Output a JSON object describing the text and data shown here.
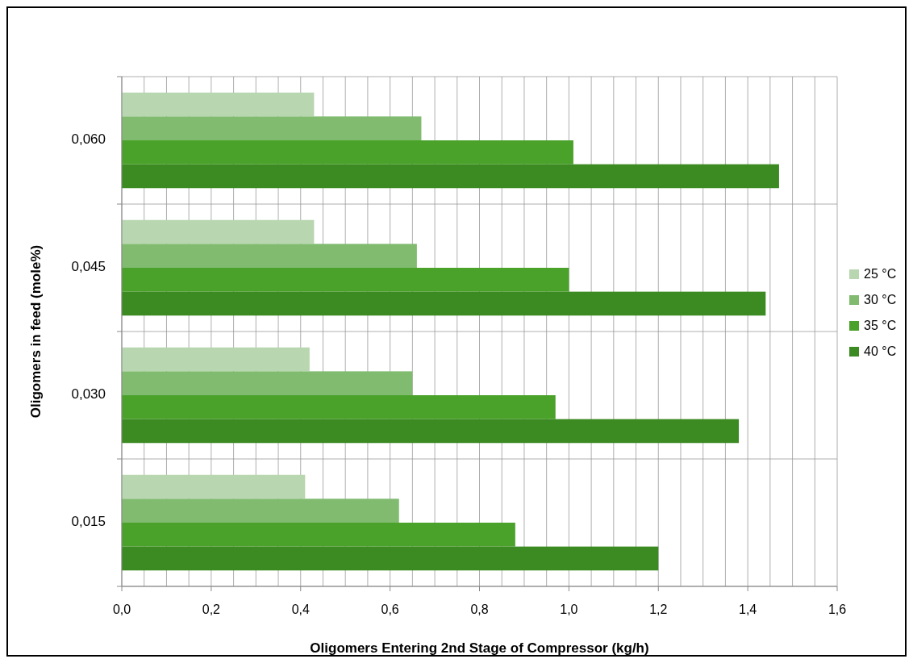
{
  "chart_data": {
    "type": "bar",
    "orientation": "horizontal",
    "xlabel": "Oligomers Entering 2nd Stage of Compressor (kg/h)",
    "ylabel": "Oligomers in feed (mole%)",
    "categories": [
      "0,060",
      "0,045",
      "0,030",
      "0,015"
    ],
    "series": [
      {
        "name": "25 °C",
        "color": "#b8d6b0",
        "values": [
          0.43,
          0.43,
          0.42,
          0.41
        ]
      },
      {
        "name": "30 °C",
        "color": "#80bb70",
        "values": [
          0.67,
          0.66,
          0.65,
          0.62
        ]
      },
      {
        "name": "35 °C",
        "color": "#4aa22a",
        "values": [
          1.01,
          1.0,
          0.97,
          0.88
        ]
      },
      {
        "name": "40 °C",
        "color": "#3b8a22",
        "values": [
          1.47,
          1.44,
          1.38,
          1.2
        ]
      }
    ],
    "xlim": [
      0,
      1.6
    ],
    "xticks": [
      {
        "value": 0,
        "label": "0,0"
      },
      {
        "value": 0.05,
        "label": null
      },
      {
        "value": 0.1,
        "label": null
      },
      {
        "value": 0.15,
        "label": null
      },
      {
        "value": 0.2,
        "label": "0,2"
      },
      {
        "value": 0.25,
        "label": null
      },
      {
        "value": 0.3,
        "label": null
      },
      {
        "value": 0.35,
        "label": null
      },
      {
        "value": 0.4,
        "label": "0,4"
      },
      {
        "value": 0.45,
        "label": null
      },
      {
        "value": 0.5,
        "label": null
      },
      {
        "value": 0.55,
        "label": null
      },
      {
        "value": 0.6,
        "label": "0,6"
      },
      {
        "value": 0.65,
        "label": null
      },
      {
        "value": 0.7,
        "label": null
      },
      {
        "value": 0.75,
        "label": null
      },
      {
        "value": 0.8,
        "label": "0,8"
      },
      {
        "value": 0.85,
        "label": null
      },
      {
        "value": 0.9,
        "label": null
      },
      {
        "value": 0.95,
        "label": null
      },
      {
        "value": 1.0,
        "label": "1,0"
      },
      {
        "value": 1.05,
        "label": null
      },
      {
        "value": 1.1,
        "label": null
      },
      {
        "value": 1.15,
        "label": null
      },
      {
        "value": 1.2,
        "label": "1,2"
      },
      {
        "value": 1.25,
        "label": null
      },
      {
        "value": 1.3,
        "label": null
      },
      {
        "value": 1.35,
        "label": null
      },
      {
        "value": 1.4,
        "label": "1,4"
      },
      {
        "value": 1.45,
        "label": null
      },
      {
        "value": 1.5,
        "label": null
      },
      {
        "value": 1.55,
        "label": null
      },
      {
        "value": 1.6,
        "label": "1,6"
      }
    ],
    "grid": true,
    "legend": "right"
  }
}
